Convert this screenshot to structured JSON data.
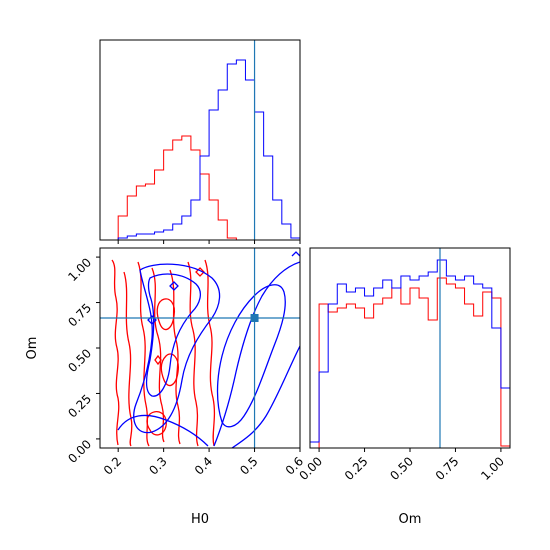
{
  "chart_data": {
    "type": "corner",
    "colors": {
      "series_a": "#ff0000",
      "series_b": "#0000ff",
      "truth": "#1f77b4"
    },
    "truth": {
      "H0": 0.5,
      "Om": 0.665
    },
    "xlabels": {
      "H0": "H0",
      "Om": "Om"
    },
    "ylabels": {
      "Om": "Om"
    },
    "h0_range": [
      0.16,
      0.6
    ],
    "om_range": [
      -0.05,
      1.05
    ],
    "h0_ticks": [
      "0.2",
      "0.3",
      "0.4",
      "0.5",
      "0.6"
    ],
    "om_ticks": [
      "0.00",
      "0.25",
      "0.50",
      "0.75",
      "1.00"
    ],
    "hist_h0": {
      "bin_edges": [
        0.16,
        0.18,
        0.2,
        0.22,
        0.24,
        0.26,
        0.28,
        0.3,
        0.32,
        0.34,
        0.36,
        0.38,
        0.4,
        0.42,
        0.44,
        0.46,
        0.48,
        0.5,
        0.52,
        0.54,
        0.56,
        0.58,
        0.6
      ],
      "series": [
        {
          "color": "red",
          "counts": [
            0,
            0,
            0.12,
            0.22,
            0.27,
            0.28,
            0.35,
            0.45,
            0.5,
            0.52,
            0.45,
            0.33,
            0.2,
            0.1,
            0.01,
            0,
            0,
            0,
            0,
            0,
            0,
            0
          ]
        },
        {
          "color": "blue",
          "counts": [
            0,
            0,
            0.01,
            0.02,
            0.03,
            0.03,
            0.04,
            0.05,
            0.08,
            0.12,
            0.2,
            0.42,
            0.65,
            0.75,
            0.88,
            0.9,
            0.8,
            0.64,
            0.42,
            0.2,
            0.08,
            0.01
          ]
        }
      ]
    },
    "hist_om": {
      "bin_edges": [
        -0.05,
        0.0,
        0.05,
        0.1,
        0.15,
        0.2,
        0.25,
        0.3,
        0.35,
        0.4,
        0.45,
        0.5,
        0.55,
        0.6,
        0.65,
        0.7,
        0.75,
        0.8,
        0.85,
        0.9,
        0.95,
        1.0,
        1.05
      ],
      "series": [
        {
          "color": "red",
          "counts": [
            0,
            0.72,
            0.68,
            0.7,
            0.72,
            0.7,
            0.65,
            0.72,
            0.75,
            0.8,
            0.72,
            0.8,
            0.75,
            0.64,
            0.85,
            0.82,
            0.8,
            0.72,
            0.66,
            0.78,
            0.75,
            0.01
          ]
        },
        {
          "color": "blue",
          "counts": [
            0.03,
            0.38,
            0.72,
            0.82,
            0.78,
            0.8,
            0.76,
            0.8,
            0.84,
            0.8,
            0.86,
            0.84,
            0.86,
            0.88,
            0.94,
            0.86,
            0.84,
            0.86,
            0.82,
            0.8,
            0.6,
            0.3
          ]
        }
      ]
    },
    "contours": {
      "series_a_color": "red",
      "series_b_color": "blue",
      "series_a_peak_h0": 0.32,
      "series_b_peak_h0": 0.47
    }
  }
}
